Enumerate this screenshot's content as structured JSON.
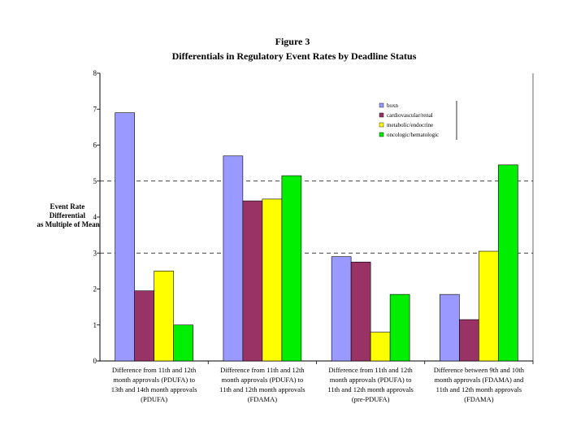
{
  "chart_data": {
    "type": "bar",
    "title": "Figure 3",
    "subtitle": "Differentials in Regulatory Event Rates by Deadline Status",
    "ylabel": [
      "Event Rate",
      "Differential",
      "as Multiple of Mean"
    ],
    "xlabel": "",
    "ylim": [
      0,
      8
    ],
    "yticks": [
      0,
      1,
      2,
      3,
      4,
      5,
      6,
      7,
      8
    ],
    "grid": "dashed at 3 and 5",
    "legend_position": "top-right",
    "categories": [
      [
        "Difference from 11th and 12th",
        "month approvals (PDUFA) to",
        "13th and 14th month approvals",
        "(PDUFA)"
      ],
      [
        "Difference from 11th and 12th",
        "month approvals (PDUFA) to",
        "11th and 12th month approvals",
        "(FDAMA)"
      ],
      [
        "Difference from 11th and 12th",
        "month approvals (PDUFA) to",
        "11th and 12th month approvals",
        "(pre-PDUFA)"
      ],
      [
        "Difference between 9th and 10th",
        "month approvals (FDAMA) and",
        "11th and 12th month approvals",
        "(FDAMA)"
      ]
    ],
    "series": [
      {
        "name": "boxn",
        "color": "#9999ff",
        "values": [
          6.9,
          5.7,
          2.9,
          1.85
        ]
      },
      {
        "name": "cardiovascular/renal",
        "color": "#993366",
        "values": [
          1.95,
          4.45,
          2.75,
          1.15
        ]
      },
      {
        "name": "metabolic/endocrine",
        "color": "#ffff00",
        "values": [
          2.5,
          4.5,
          0.8,
          3.05
        ]
      },
      {
        "name": "oncologic/hematologic",
        "color": "#00ee00",
        "values": [
          1.0,
          5.15,
          1.85,
          5.45
        ]
      }
    ]
  }
}
